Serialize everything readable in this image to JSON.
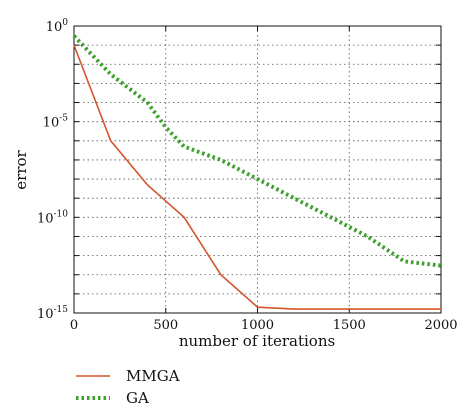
{
  "chart_data": {
    "type": "line",
    "xlabel": "number of iterations",
    "ylabel": "error",
    "xlim": [
      0,
      2000
    ],
    "ylim": [
      1e-15,
      1
    ],
    "yscale": "log",
    "grid": true,
    "legend_position": "bottom-left, below plot",
    "x_ticks": [
      0,
      500,
      1000,
      1500,
      2000
    ],
    "y_ticks": [
      {
        "value": 1,
        "base": "10",
        "exp": "0"
      },
      {
        "value": 1e-05,
        "base": "10",
        "exp": "-5"
      },
      {
        "value": 1e-10,
        "base": "10",
        "exp": "-10"
      },
      {
        "value": 1e-15,
        "base": "10",
        "exp": "-15"
      }
    ],
    "series": [
      {
        "name": "MMGA",
        "style": "solid",
        "color": "#d4552b",
        "x": [
          0,
          200,
          400,
          600,
          800,
          1000,
          1200,
          1400,
          1600,
          1800,
          2000
        ],
        "y": [
          0.1,
          1e-06,
          5e-09,
          1e-10,
          1e-13,
          2e-15,
          1.6e-15,
          1.6e-15,
          1.6e-15,
          1.6e-15,
          1.6e-15
        ]
      },
      {
        "name": "GA",
        "style": "dotted",
        "color": "#3aa02a",
        "x": [
          0,
          100,
          200,
          400,
          500,
          600,
          800,
          1000,
          1200,
          1400,
          1600,
          1800,
          2000
        ],
        "y": [
          0.3,
          0.03,
          0.003,
          0.0001,
          5e-06,
          5e-07,
          1e-07,
          1e-08,
          1e-09,
          1e-10,
          1e-11,
          5e-13,
          3e-13
        ]
      }
    ]
  }
}
